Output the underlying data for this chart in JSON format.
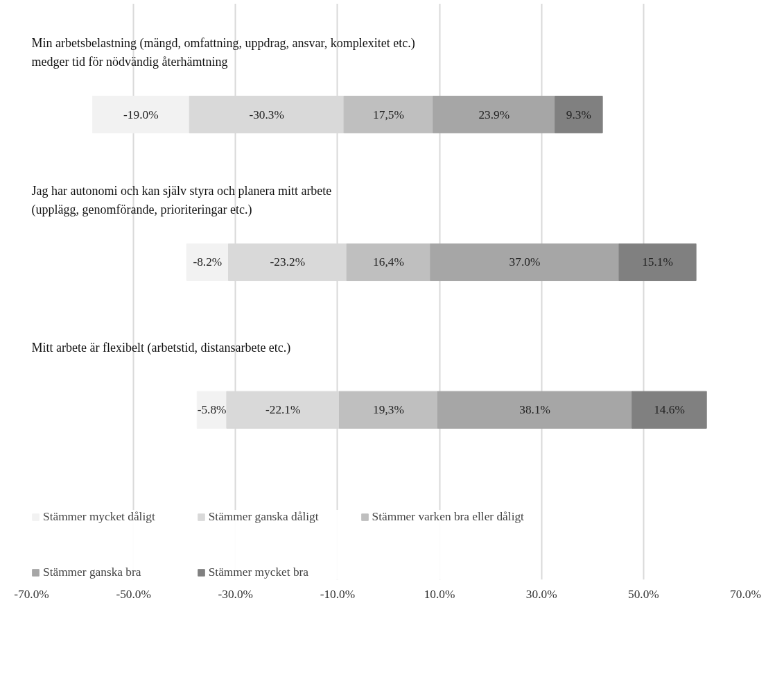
{
  "chart_data": {
    "type": "bar",
    "orientation": "horizontal",
    "categories": [
      "Min arbetsbelastning (mängd, omfattning, uppdrag, ansvar, komplexitet etc.)\nmedger tid för nödvändig återhämtning",
      "Jag har autonomi och kan själv styra och planera mitt arbete\n(upplägg, genomförande, prioriteringar etc.)",
      "Mitt arbete är flexibelt (arbetstid, distansarbete etc.)"
    ],
    "series": [
      {
        "name": "Stämmer mycket dåligt",
        "color": "#f2f2f2",
        "values": [
          -19.0,
          -8.2,
          -5.8
        ],
        "base": [
          -39.05,
          -31.4,
          -31.75
        ],
        "value_labels": [
          "-19.0%",
          "-8.2%",
          "-5.8%"
        ]
      },
      {
        "name": "Stämmer ganska dåligt",
        "color": "#d9d9d9",
        "values": [
          -30.3,
          -23.2,
          -22.1
        ],
        "base": [
          -8.75,
          -8.2,
          -9.65
        ],
        "value_labels": [
          "-30.3%",
          "-23.2%",
          "-22.1%"
        ]
      },
      {
        "name": "Stämmer varken bra eller dåligt",
        "color": "#bfbfbf",
        "values": [
          17.5,
          16.4,
          19.3
        ],
        "base": [
          -8.75,
          -8.2,
          -9.65
        ],
        "value_labels": [
          "17,5%",
          "16,4%",
          "19,3%"
        ]
      },
      {
        "name": "Stämmer ganska bra",
        "color": "#a6a6a6",
        "values": [
          23.9,
          37.0,
          38.1
        ],
        "base": [
          8.75,
          8.2,
          9.65
        ],
        "value_labels": [
          "23.9%",
          "37.0%",
          "38.1%"
        ]
      },
      {
        "name": "Stämmer mycket bra",
        "color": "#808080",
        "values": [
          9.3,
          15.1,
          14.6
        ],
        "base": [
          32.65,
          45.2,
          47.75
        ],
        "value_labels": [
          "9.3%",
          "15.1%",
          "14.6%"
        ]
      }
    ],
    "xlim": [
      -70,
      70
    ],
    "xticks": [
      {
        "value": -70,
        "label": "-70.0%"
      },
      {
        "value": -50,
        "label": "-50.0%"
      },
      {
        "value": -30,
        "label": "-30.0%"
      },
      {
        "value": -10,
        "label": "-10.0%"
      },
      {
        "value": 10,
        "label": "10.0%"
      },
      {
        "value": 30,
        "label": "30.0%"
      },
      {
        "value": 50,
        "label": "50.0%"
      },
      {
        "value": 70,
        "label": "70.0%"
      }
    ],
    "grid": "x",
    "legend": "bottom"
  }
}
